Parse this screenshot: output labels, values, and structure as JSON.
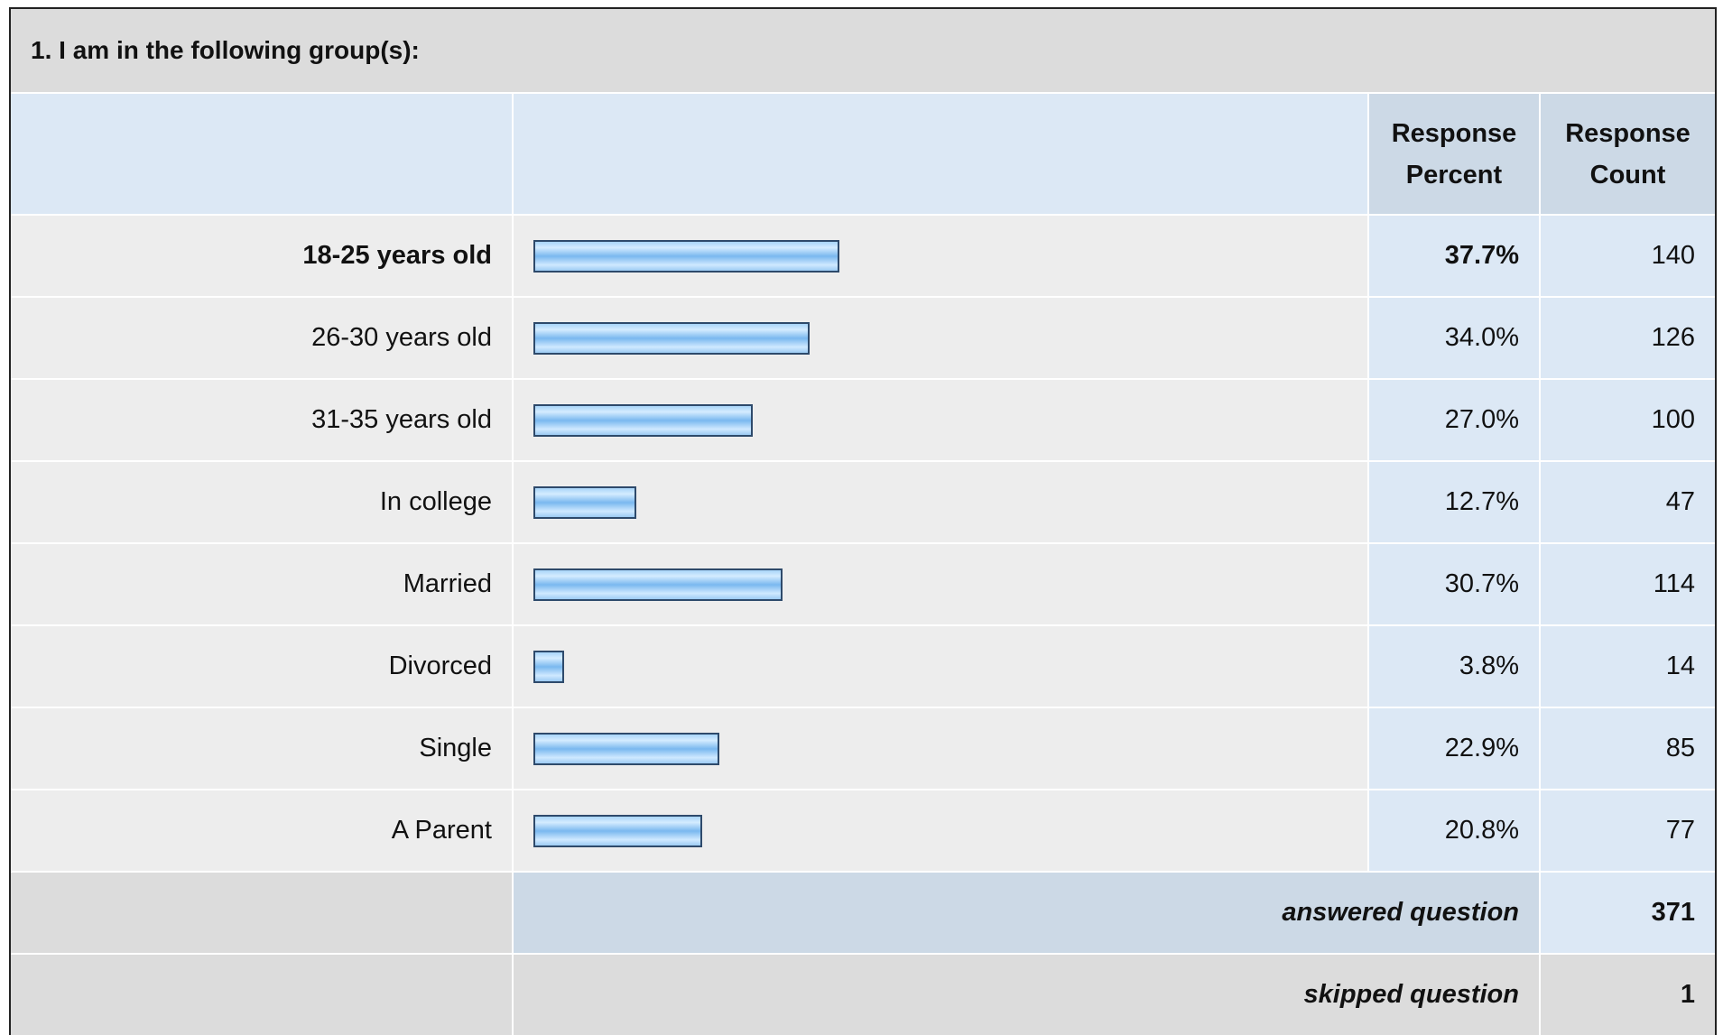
{
  "question": {
    "title": "1. I am in the following group(s):"
  },
  "table": {
    "headers": {
      "percent": "Response Percent",
      "count": "Response Count"
    },
    "rows": [
      {
        "label": "18-25 years old",
        "percent": 37.7,
        "percent_label": "37.7%",
        "count": 140
      },
      {
        "label": "26-30 years old",
        "percent": 34.0,
        "percent_label": "34.0%",
        "count": 126
      },
      {
        "label": "31-35 years old",
        "percent": 27.0,
        "percent_label": "27.0%",
        "count": 100
      },
      {
        "label": "In college",
        "percent": 12.7,
        "percent_label": "12.7%",
        "count": 47
      },
      {
        "label": "Married",
        "percent": 30.7,
        "percent_label": "30.7%",
        "count": 114
      },
      {
        "label": "Divorced",
        "percent": 3.8,
        "percent_label": "3.8%",
        "count": 14
      },
      {
        "label": "Single",
        "percent": 22.9,
        "percent_label": "22.9%",
        "count": 85
      },
      {
        "label": "A Parent",
        "percent": 20.8,
        "percent_label": "20.8%",
        "count": 77
      }
    ],
    "footer": [
      {
        "label": "answered question",
        "count": 371
      },
      {
        "label": "skipped question",
        "count": 1
      }
    ]
  }
}
